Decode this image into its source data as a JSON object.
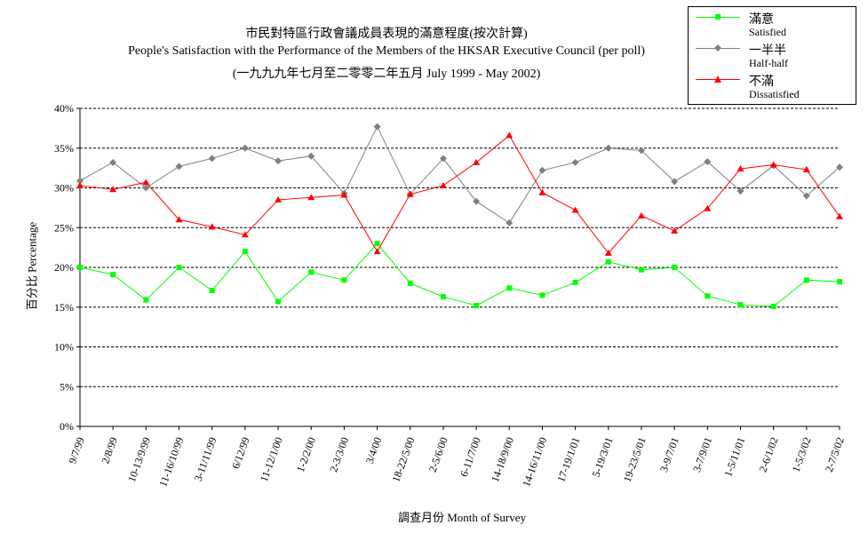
{
  "title_lines": [
    "市民對特區行政會議成員表現的滿意程度(按次計算)",
    "People's Satisfaction with the Performance of the Members of the HKSAR Executive Council (per poll)",
    "(一九九九年七月至二零零二年五月 July 1999 -  May 2002)"
  ],
  "legend": [
    {
      "zh": "滿意",
      "en": "Satisfied",
      "color": "#00ff00",
      "marker": "square"
    },
    {
      "zh": "一半半",
      "en": "Half-half",
      "color": "#808080",
      "marker": "diamond"
    },
    {
      "zh": "不滿",
      "en": "Dissatisfied",
      "color": "#ff0000",
      "marker": "triangle"
    }
  ],
  "chart_data": {
    "type": "line",
    "title": "People's Satisfaction with the Performance of the Members of the HKSAR Executive Council (per poll)",
    "xlabel": "調查月份 Month of Survey",
    "ylabel": "百分比 Percentage",
    "ylim": [
      0,
      40
    ],
    "ytick_labels": [
      "0%",
      "5%",
      "10%",
      "15%",
      "20%",
      "25%",
      "30%",
      "35%",
      "40%"
    ],
    "grid": "horizontal dashed",
    "legend_position": "top-right",
    "categories": [
      "9/7/99",
      "2/8/99",
      "10-13/9/99",
      "11-16/10/99",
      "3-11/11/99",
      "6/12/99",
      "11-12/1/00",
      "1-2/2/00",
      "2-3/3/00",
      "3/4/00",
      "18-22/5/00",
      "2-5/6/00",
      "6-11/7/00",
      "14-18/9/00",
      "14-16/11/00",
      "17-19/1/01",
      "5-19/3/01",
      "19-23/5/01",
      "3-9/7/01",
      "3-7/9/01",
      "1-5/11/01",
      "2-6/1/02",
      "1-5/3/02",
      "2-7/5/02"
    ],
    "series": [
      {
        "name": "Satisfied",
        "color": "#00ff00",
        "marker": "square",
        "values": [
          20.0,
          19.1,
          15.9,
          20.0,
          17.1,
          22.0,
          15.7,
          19.4,
          18.4,
          23.0,
          18.0,
          16.3,
          15.2,
          17.4,
          16.5,
          18.1,
          20.7,
          19.7,
          20.0,
          16.4,
          15.3,
          15.1,
          18.4,
          18.2
        ]
      },
      {
        "name": "Half-half",
        "color": "#808080",
        "marker": "diamond",
        "values": [
          30.9,
          33.2,
          30.0,
          32.7,
          33.7,
          35.0,
          33.4,
          34.0,
          29.3,
          37.7,
          29.2,
          33.7,
          28.3,
          25.6,
          32.2,
          33.2,
          35.0,
          34.7,
          30.8,
          33.3,
          29.6,
          32.8,
          29.0,
          32.6
        ]
      },
      {
        "name": "Dissatisfied",
        "color": "#ff0000",
        "marker": "triangle",
        "values": [
          30.3,
          29.8,
          30.7,
          26.0,
          25.1,
          24.1,
          28.5,
          28.8,
          29.1,
          22.0,
          29.2,
          30.3,
          33.2,
          36.6,
          29.4,
          27.2,
          21.8,
          26.5,
          24.6,
          27.4,
          32.4,
          32.9,
          32.3,
          26.4
        ]
      }
    ]
  }
}
